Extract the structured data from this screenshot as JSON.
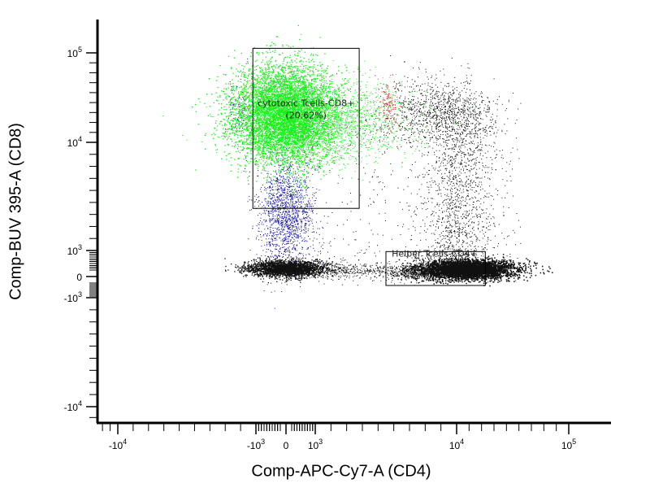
{
  "chart_data": {
    "type": "scatter",
    "title": "",
    "xlabel": "Comp-APC-Cy7-A (CD4)",
    "ylabel": "Comp-BUV 395-A (CD8)",
    "x_scale": "biexponential",
    "y_scale": "biexponential",
    "xlim": [
      -15000,
      180000
    ],
    "ylim": [
      -15000,
      180000
    ],
    "x_ticks": [
      {
        "value": -10000,
        "base": "-10",
        "exp": "4"
      },
      {
        "value": -1000,
        "base": "-10",
        "exp": "3"
      },
      {
        "value": 0,
        "base": "0",
        "exp": ""
      },
      {
        "value": 1000,
        "base": "10",
        "exp": "3"
      },
      {
        "value": 10000,
        "base": "10",
        "exp": "4"
      },
      {
        "value": 100000,
        "base": "10",
        "exp": "5"
      }
    ],
    "y_ticks": [
      {
        "value": 100000,
        "base": "10",
        "exp": "5"
      },
      {
        "value": 10000,
        "base": "10",
        "exp": "4"
      },
      {
        "value": 1000,
        "base": "10",
        "exp": "3"
      },
      {
        "value": 0,
        "base": "0",
        "exp": ""
      },
      {
        "value": -1000,
        "base": "-10",
        "exp": "3"
      },
      {
        "value": -10000,
        "base": "-10",
        "exp": "4"
      }
    ],
    "gates": [
      {
        "label": "cytotoxic Tcells-CD8+",
        "percent": "(20.62%)",
        "x_range": [
          -1200,
          3800
        ],
        "y_range": [
          4500,
          140000
        ],
        "color": "#19f019"
      },
      {
        "label": "Helper Tcells-CD4+",
        "percent": "",
        "x_range": [
          5500,
          33000
        ],
        "y_range": [
          -250,
          950
        ],
        "color": "#222222"
      }
    ],
    "populations": [
      {
        "color": "#19f019",
        "gate": "cytotoxic Tcells-CD8+",
        "center": [
          0,
          20000
        ]
      },
      {
        "color": "#1010a0",
        "gate": "none",
        "center": [
          0,
          2500
        ]
      },
      {
        "color": "#111111",
        "gate": "none",
        "center": [
          0,
          0
        ]
      },
      {
        "color": "#111111",
        "gate": "Helper Tcells-CD4+",
        "center": [
          12000,
          0
        ]
      },
      {
        "color": "#e02020",
        "gate": "none",
        "center": [
          3000,
          20000
        ]
      }
    ],
    "grid": false,
    "legend": "none"
  }
}
